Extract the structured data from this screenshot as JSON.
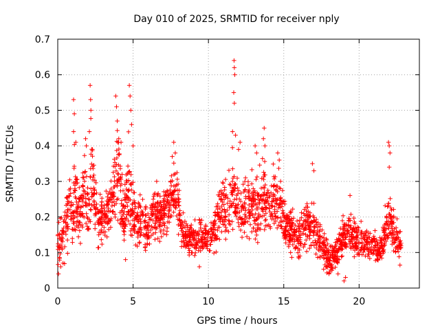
{
  "chart_data": {
    "type": "scatter",
    "title": "Day 010 of 2025, SRMTID for receiver nply",
    "xlabel": "GPS time / hours",
    "ylabel": "SRMTID / TECUs",
    "xlim": [
      0,
      24
    ],
    "ylim": [
      0,
      0.7
    ],
    "x_ticks": [
      0,
      5,
      10,
      15,
      20
    ],
    "y_ticks": [
      0,
      0.1,
      0.2,
      0.3,
      0.4,
      0.5,
      0.6,
      0.7
    ],
    "x_tick_labels": [
      "0",
      "5",
      "10",
      "15",
      "20"
    ],
    "y_tick_labels": [
      "0",
      "0.1",
      "0.2",
      "0.3",
      "0.4",
      "0.5",
      "0.6",
      "0.7"
    ],
    "grid": true,
    "marker": "+",
    "series": [
      {
        "name": "SRMTID",
        "color": "#ff0000",
        "x_start": 0.0,
        "x_end": 22.8,
        "envelope": [
          [
            0.0,
            0.13,
            0.06
          ],
          [
            0.3,
            0.14,
            0.05
          ],
          [
            0.5,
            0.17,
            0.07
          ],
          [
            0.8,
            0.22,
            0.08
          ],
          [
            1.0,
            0.19,
            0.08
          ],
          [
            1.1,
            0.28,
            0.12
          ],
          [
            1.4,
            0.2,
            0.07
          ],
          [
            1.6,
            0.26,
            0.09
          ],
          [
            1.8,
            0.3,
            0.1
          ],
          [
            2.0,
            0.2,
            0.07
          ],
          [
            2.2,
            0.33,
            0.13
          ],
          [
            2.4,
            0.25,
            0.08
          ],
          [
            2.7,
            0.19,
            0.07
          ],
          [
            3.0,
            0.19,
            0.06
          ],
          [
            3.3,
            0.21,
            0.07
          ],
          [
            3.6,
            0.24,
            0.08
          ],
          [
            3.9,
            0.33,
            0.12
          ],
          [
            4.1,
            0.28,
            0.1
          ],
          [
            4.4,
            0.2,
            0.07
          ],
          [
            4.7,
            0.29,
            0.12
          ],
          [
            4.9,
            0.23,
            0.08
          ],
          [
            5.2,
            0.19,
            0.06
          ],
          [
            5.6,
            0.19,
            0.06
          ],
          [
            6.0,
            0.16,
            0.05
          ],
          [
            6.4,
            0.22,
            0.06
          ],
          [
            6.8,
            0.2,
            0.06
          ],
          [
            7.2,
            0.22,
            0.06
          ],
          [
            7.6,
            0.26,
            0.07
          ],
          [
            7.9,
            0.26,
            0.08
          ],
          [
            8.2,
            0.17,
            0.05
          ],
          [
            8.6,
            0.14,
            0.05
          ],
          [
            9.0,
            0.14,
            0.04
          ],
          [
            9.4,
            0.15,
            0.05
          ],
          [
            9.8,
            0.14,
            0.04
          ],
          [
            10.2,
            0.15,
            0.05
          ],
          [
            10.6,
            0.19,
            0.06
          ],
          [
            11.0,
            0.24,
            0.07
          ],
          [
            11.3,
            0.22,
            0.07
          ],
          [
            11.6,
            0.27,
            0.1
          ],
          [
            11.9,
            0.25,
            0.09
          ],
          [
            12.2,
            0.21,
            0.07
          ],
          [
            12.6,
            0.24,
            0.08
          ],
          [
            13.0,
            0.22,
            0.07
          ],
          [
            13.4,
            0.24,
            0.08
          ],
          [
            13.7,
            0.27,
            0.08
          ],
          [
            14.0,
            0.22,
            0.07
          ],
          [
            14.4,
            0.26,
            0.08
          ],
          [
            14.8,
            0.23,
            0.08
          ],
          [
            15.1,
            0.17,
            0.06
          ],
          [
            15.6,
            0.16,
            0.05
          ],
          [
            16.0,
            0.14,
            0.05
          ],
          [
            16.5,
            0.19,
            0.06
          ],
          [
            17.0,
            0.17,
            0.06
          ],
          [
            17.5,
            0.12,
            0.05
          ],
          [
            18.0,
            0.08,
            0.04
          ],
          [
            18.5,
            0.1,
            0.04
          ],
          [
            19.0,
            0.14,
            0.05
          ],
          [
            19.4,
            0.17,
            0.06
          ],
          [
            19.8,
            0.13,
            0.05
          ],
          [
            20.3,
            0.13,
            0.04
          ],
          [
            20.8,
            0.12,
            0.04
          ],
          [
            21.2,
            0.1,
            0.04
          ],
          [
            21.6,
            0.13,
            0.04
          ],
          [
            21.9,
            0.2,
            0.08
          ],
          [
            22.2,
            0.17,
            0.06
          ],
          [
            22.5,
            0.13,
            0.05
          ],
          [
            22.8,
            0.13,
            0.05
          ]
        ],
        "peaks": [
          [
            1.05,
            0.53
          ],
          [
            1.1,
            0.49
          ],
          [
            1.05,
            0.44
          ],
          [
            1.2,
            0.41
          ],
          [
            1.85,
            0.42
          ],
          [
            1.9,
            0.4
          ],
          [
            2.15,
            0.57
          ],
          [
            2.18,
            0.53
          ],
          [
            2.2,
            0.5
          ],
          [
            2.1,
            0.44
          ],
          [
            2.3,
            0.39
          ],
          [
            3.85,
            0.54
          ],
          [
            3.9,
            0.51
          ],
          [
            3.95,
            0.47
          ],
          [
            4.05,
            0.42
          ],
          [
            4.2,
            0.41
          ],
          [
            4.75,
            0.57
          ],
          [
            4.8,
            0.54
          ],
          [
            4.85,
            0.5
          ],
          [
            4.9,
            0.46
          ],
          [
            5.0,
            0.4
          ],
          [
            7.7,
            0.41
          ],
          [
            7.6,
            0.37
          ],
          [
            7.8,
            0.38
          ],
          [
            11.7,
            0.64
          ],
          [
            11.72,
            0.62
          ],
          [
            11.75,
            0.6
          ],
          [
            11.68,
            0.55
          ],
          [
            11.72,
            0.52
          ],
          [
            11.6,
            0.44
          ],
          [
            11.8,
            0.43
          ],
          [
            12.1,
            0.41
          ],
          [
            12.0,
            0.39
          ],
          [
            13.1,
            0.4
          ],
          [
            13.2,
            0.38
          ],
          [
            13.7,
            0.45
          ],
          [
            13.65,
            0.42
          ],
          [
            13.75,
            0.4
          ],
          [
            14.6,
            0.38
          ],
          [
            14.7,
            0.36
          ],
          [
            16.9,
            0.35
          ],
          [
            17.0,
            0.33
          ],
          [
            21.95,
            0.41
          ],
          [
            22.0,
            0.4
          ],
          [
            22.05,
            0.38
          ],
          [
            22.0,
            0.34
          ]
        ],
        "lows": [
          [
            0.05,
            0.04
          ],
          [
            0.2,
            0.06
          ],
          [
            0.35,
            0.07
          ],
          [
            4.5,
            0.08
          ],
          [
            9.4,
            0.06
          ],
          [
            18.0,
            0.04
          ],
          [
            18.2,
            0.05
          ],
          [
            19.0,
            0.02
          ],
          [
            19.1,
            0.03
          ],
          [
            18.6,
            0.04
          ]
        ]
      }
    ]
  }
}
